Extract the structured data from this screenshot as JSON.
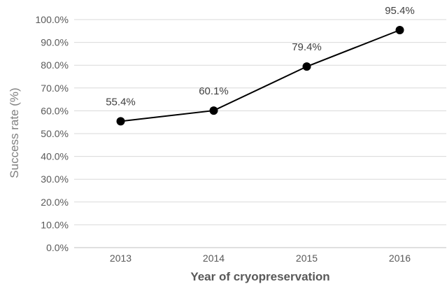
{
  "chart_data": {
    "type": "line",
    "title": "",
    "xlabel": "Year of cryopreservation",
    "ylabel": "Success rate (%)",
    "categories": [
      "2013",
      "2014",
      "2015",
      "2016"
    ],
    "series": [
      {
        "values": [
          55.4,
          60.1,
          79.4,
          95.4
        ]
      }
    ],
    "data_labels": [
      "55.4%",
      "60.1%",
      "79.4%",
      "95.4%"
    ],
    "y_ticks": [
      "0.0%",
      "10.0%",
      "20.0%",
      "30.0%",
      "40.0%",
      "50.0%",
      "60.0%",
      "70.0%",
      "80.0%",
      "90.0%",
      "100.0%"
    ],
    "ylim": [
      0,
      100
    ],
    "grid": true,
    "legend": "none",
    "colors": {
      "line": "#000000",
      "marker": "#000000",
      "grid": "#d9d9d9"
    }
  }
}
